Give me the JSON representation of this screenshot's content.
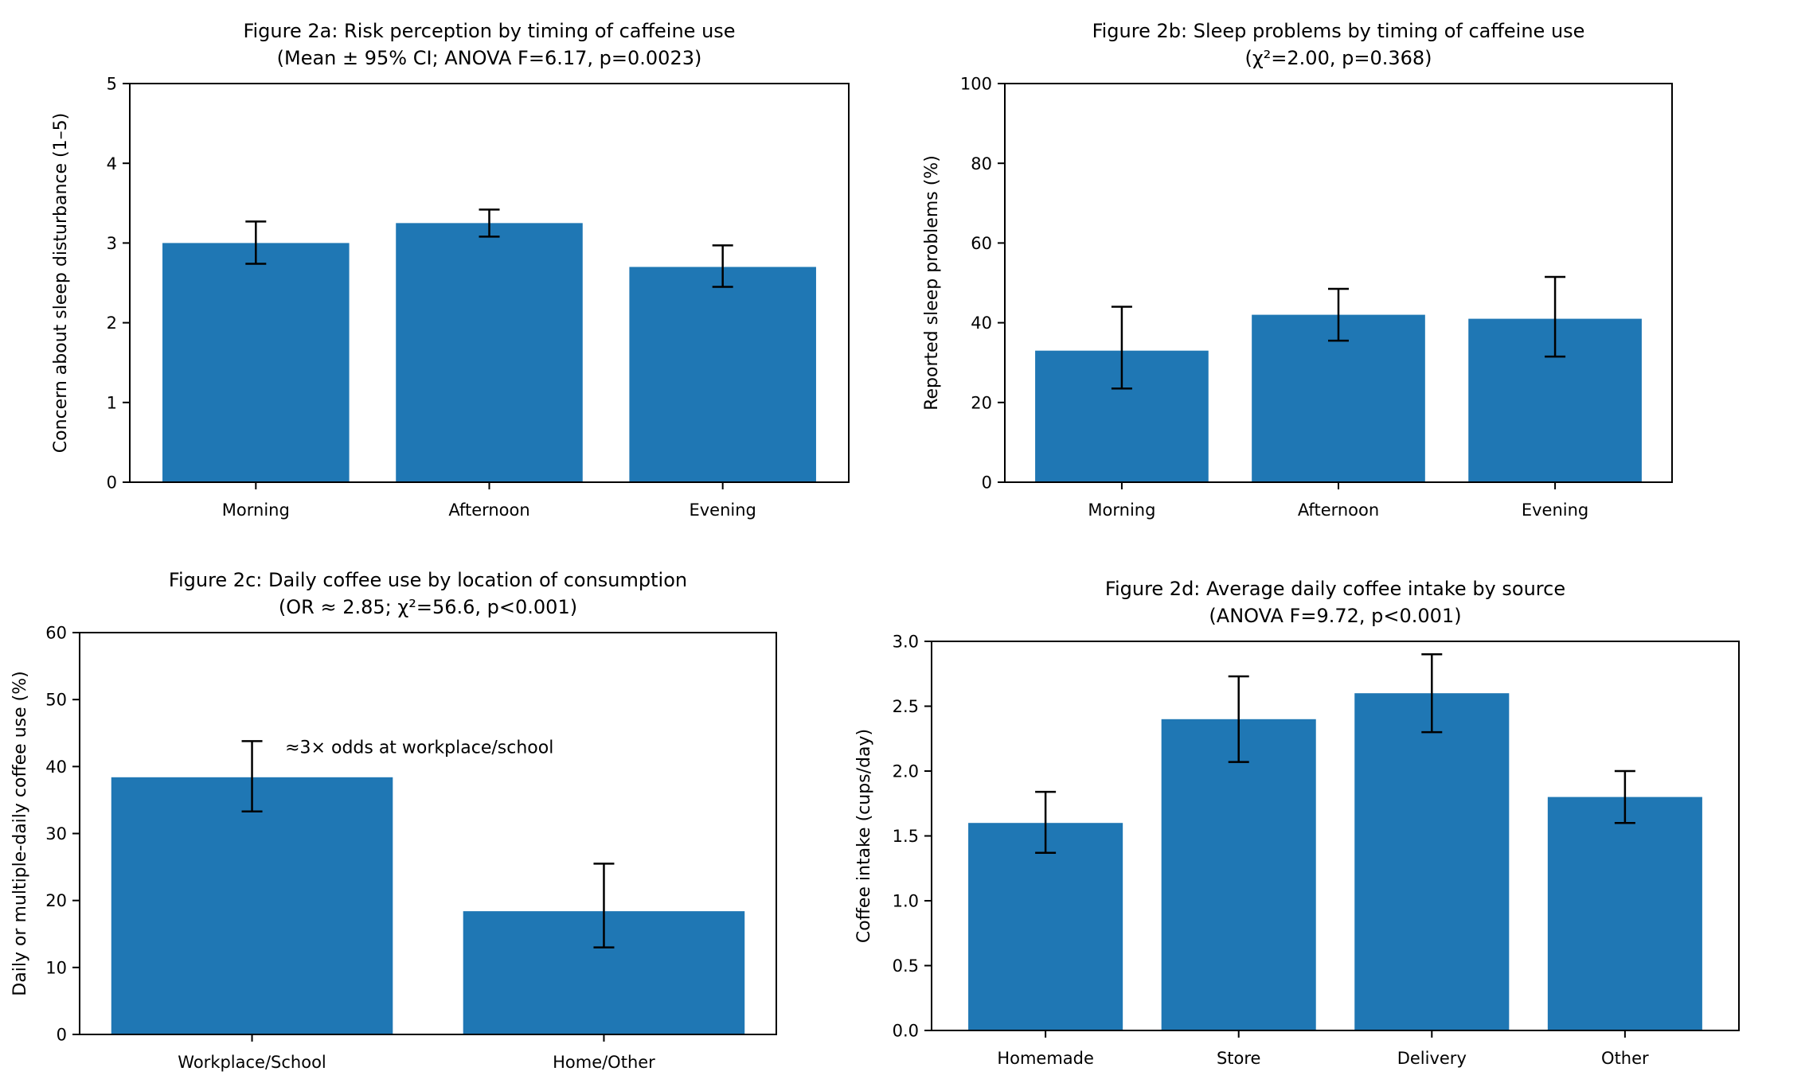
{
  "page": {
    "background": "#ffffff",
    "text_color": "#000000"
  },
  "chart_data": [
    {
      "id": "2a",
      "type": "bar",
      "title": "Figure 2a: Risk perception by timing of caffeine use",
      "subtitle": "(Mean ± 95% CI; ANOVA F=6.17, p=0.0023)",
      "xlabel": "",
      "ylabel": "Concern about sleep disturbance (1–5)",
      "categories": [
        "Morning",
        "Afternoon",
        "Evening"
      ],
      "values": [
        3.0,
        3.25,
        2.7
      ],
      "ci_low": [
        2.74,
        3.08,
        2.45
      ],
      "ci_high": [
        3.27,
        3.42,
        2.97
      ],
      "ylim": [
        0,
        5
      ],
      "yticks": [
        "0",
        "1",
        "2",
        "3",
        "4",
        "5"
      ],
      "grid": false,
      "legend": null,
      "bar_color": "#1f77b4",
      "error_color": "#000000"
    },
    {
      "id": "2b",
      "type": "bar",
      "title": "Figure 2b: Sleep problems by timing of caffeine use",
      "subtitle": "(χ²=2.00, p=0.368)",
      "xlabel": "",
      "ylabel": "Reported sleep problems (%)",
      "categories": [
        "Morning",
        "Afternoon",
        "Evening"
      ],
      "values": [
        33,
        42,
        41
      ],
      "ci_low": [
        23.5,
        35.5,
        31.5
      ],
      "ci_high": [
        44,
        48.5,
        51.5
      ],
      "ylim": [
        0,
        100
      ],
      "yticks": [
        "0",
        "20",
        "40",
        "60",
        "80",
        "100"
      ],
      "grid": false,
      "legend": null,
      "bar_color": "#1f77b4",
      "error_color": "#000000"
    },
    {
      "id": "2c",
      "type": "bar",
      "title": "Figure 2c: Daily coffee use by location of consumption",
      "subtitle": "(OR ≈ 2.85; χ²=56.6, p<0.001)",
      "xlabel": "",
      "ylabel": "Daily or multiple-daily coffee use (%)",
      "categories": [
        "Workplace/School",
        "Home/Other"
      ],
      "values": [
        38.4,
        18.4
      ],
      "ci_low": [
        33.3,
        13.0
      ],
      "ci_high": [
        43.8,
        25.5
      ],
      "ylim": [
        0,
        60
      ],
      "yticks": [
        "0",
        "10",
        "20",
        "30",
        "40",
        "50",
        "60"
      ],
      "grid": false,
      "legend": null,
      "bar_color": "#1f77b4",
      "error_color": "#000000",
      "annotation": {
        "text": "≈3× odds at workplace/school",
        "x_frac": 0.295,
        "y_data": 42
      }
    },
    {
      "id": "2d",
      "type": "bar",
      "title": "Figure 2d: Average daily coffee intake by source",
      "subtitle": "(ANOVA F=9.72, p<0.001)",
      "xlabel": "",
      "ylabel": "Coffee intake (cups/day)",
      "categories": [
        "Homemade",
        "Store",
        "Delivery",
        "Other"
      ],
      "values": [
        1.6,
        2.4,
        2.6,
        1.8
      ],
      "ci_low": [
        1.37,
        2.07,
        2.3,
        1.6
      ],
      "ci_high": [
        1.84,
        2.73,
        2.9,
        2.0
      ],
      "ylim": [
        0,
        3
      ],
      "yticks": [
        "0.0",
        "0.5",
        "1.0",
        "1.5",
        "2.0",
        "2.5",
        "3.0"
      ],
      "grid": false,
      "legend": null,
      "bar_color": "#1f77b4",
      "error_color": "#000000"
    }
  ]
}
